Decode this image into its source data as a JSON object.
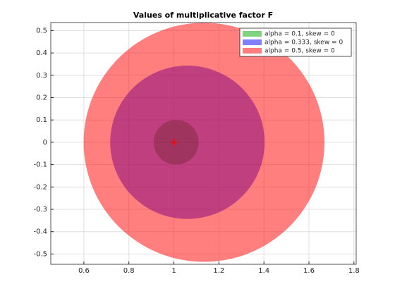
{
  "chart_data": {
    "type": "circle",
    "title": "Values of multiplicative factor F",
    "series": [
      {
        "name": "alpha = 0.1, skew = 0",
        "color": "#00aa00",
        "x": 1.01,
        "y": 0,
        "radius": 0.1
      },
      {
        "name": "alpha = 0.333, skew = 0",
        "color": "#0000ff",
        "x": 1.06,
        "y": 0,
        "radius": 0.343
      },
      {
        "name": "alpha = 0.5, skew = 0",
        "color": "#ff0000",
        "x": 1.134,
        "y": 0,
        "radius": 0.535
      }
    ],
    "marker": {
      "x": 1,
      "y": 0,
      "color": "#ff0000"
    },
    "opacity": 0.5,
    "xlim": [
      0.453,
      1.81
    ],
    "xticks": [
      0.6,
      0.8,
      1,
      1.2,
      1.4,
      1.6,
      1.8
    ],
    "ylim": [
      -0.546,
      0.536
    ],
    "yticks": [
      -0.5,
      -0.4,
      -0.3,
      -0.2,
      -0.1,
      0,
      0.1,
      0.2,
      0.3,
      0.4,
      0.5
    ],
    "grid": true,
    "legend": "northeast"
  }
}
